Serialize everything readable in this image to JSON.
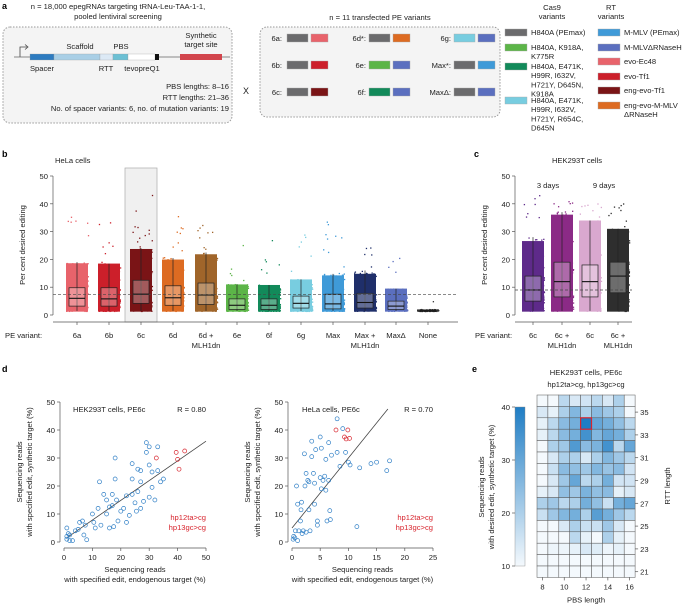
{
  "panel_a": {
    "label": "a",
    "library_title_1": "n = 18,000 epegRNAs targeting tRNA-Leu-TAA-1-1,",
    "library_title_2": "pooled lentiviral screening",
    "construct": {
      "scaffold": "Scaffold",
      "pbs": "PBS",
      "synthetic_1": "Synthetic",
      "synthetic_2": "target site",
      "spacer": "Spacer",
      "rtt": "RTT",
      "tevopreq1": "tevopreQ1"
    },
    "construct_colors": {
      "spacer": "#2d7bc0",
      "scaffold": "#a9cfe6",
      "rtt": "#dce9f5",
      "pbs": "#6cc0d4",
      "tevopreq1": "#ffffff",
      "synthetic": "#d2454d"
    },
    "pbs_lengths": "PBS lengths: 8–16",
    "rtt_lengths": "RTT lengths: 21–36",
    "variants_note": "No. of spacer variants: 6, no. of mutation variants: 19",
    "times": "X",
    "pe_title": "n = 11 transfected PE variants",
    "pe_variants": [
      {
        "label": "6a:",
        "cas9": "#6b6b6d",
        "rt": "#e8636b"
      },
      {
        "label": "6b:",
        "cas9": "#6b6b6d",
        "rt": "#cc1f2a"
      },
      {
        "label": "6c:",
        "cas9": "#6b6b6d",
        "rt": "#7a1416"
      },
      {
        "label": "6d*:",
        "cas9": "#6b6b6d",
        "rt": "#dd6b22"
      },
      {
        "label": "6e:",
        "cas9": "#5cb548",
        "rt": "#5b6fbf"
      },
      {
        "label": "6f:",
        "cas9": "#128a5a",
        "rt": "#5b6fbf"
      },
      {
        "label": "6g:",
        "cas9": "#78cde0",
        "rt": "#5b6fbf"
      },
      {
        "label": "Max*:",
        "cas9": "#6b6b6d",
        "rt": "#3f9ad8"
      },
      {
        "label": "MaxΔ:",
        "cas9": "#6b6b6d",
        "rt": "#5b6fbf"
      }
    ],
    "cas9_header": [
      "Cas9",
      "variants"
    ],
    "cas9_legend": [
      {
        "color": "#6b6b6d",
        "lines": [
          "H840A (PEmax)"
        ]
      },
      {
        "color": "#5cb548",
        "lines": [
          "H840A, K918A,",
          "K775R"
        ]
      },
      {
        "color": "#128a5a",
        "lines": [
          "H840A, E471K,",
          "H99R, I632V,",
          "H721Y, D645N,",
          "K918A"
        ]
      },
      {
        "color": "#78cde0",
        "lines": [
          "H840A, E471K,",
          "H99R, I632V,",
          "H721Y, R654C,",
          "D645N"
        ]
      }
    ],
    "rt_header": [
      "RT",
      "variants"
    ],
    "rt_legend": [
      {
        "color": "#3f9ad8",
        "lines": [
          "M-MLV (PEmax)"
        ]
      },
      {
        "color": "#5b6fbf",
        "lines": [
          "M-MLVΔRNaseH"
        ]
      },
      {
        "color": "#e8636b",
        "lines": [
          "evo-Ec48"
        ]
      },
      {
        "color": "#cc1f2a",
        "lines": [
          "evo-Tf1"
        ]
      },
      {
        "color": "#7a1416",
        "lines": [
          "eng-evo-Tf1"
        ]
      },
      {
        "color": "#dd6b22",
        "lines": [
          "eng-evo-M-MLV",
          "ΔRNaseH"
        ]
      }
    ]
  },
  "chart_data": [
    {
      "panel": "b",
      "type": "box+strip",
      "title": "HeLa cells",
      "ylabel": "Per cent desired editing",
      "xlabel": "PE variant:",
      "ylim": [
        0,
        50
      ],
      "yticks": [
        0,
        10,
        20,
        30,
        40,
        50
      ],
      "reference_line": 7.3,
      "highlighted": "6c",
      "categories": [
        {
          "label": [
            "6a"
          ],
          "color": "#e8636b",
          "median": 6,
          "q1": 3.2,
          "q3": 9.8,
          "whisker_low": 1.5,
          "whisker_high": 19,
          "max": 37.5
        },
        {
          "label": [
            "6b"
          ],
          "color": "#cc1f2a",
          "median": 5.8,
          "q1": 3.2,
          "q3": 9.8,
          "whisker_low": 1.5,
          "whisker_high": 18.5,
          "max": 35.5
        },
        {
          "label": [
            "6c"
          ],
          "color": "#7a1416",
          "median": 7.5,
          "q1": 4.2,
          "q3": 12.5,
          "whisker_low": 1.5,
          "whisker_high": 24,
          "max": 43
        },
        {
          "label": [
            "6d"
          ],
          "color": "#dd6b22",
          "median": 6.2,
          "q1": 3.5,
          "q3": 10.5,
          "whisker_low": 1.5,
          "whisker_high": 20.5,
          "max": 38
        },
        {
          "label": [
            "6d +",
            "MLH1dn"
          ],
          "color": "#a0652a",
          "median": 7.2,
          "q1": 3.8,
          "q3": 11.5,
          "whisker_low": 1.5,
          "whisker_high": 22.5,
          "max": 32.5
        },
        {
          "label": [
            "6e"
          ],
          "color": "#5cb548",
          "median": 3.5,
          "q1": 2,
          "q3": 5.8,
          "whisker_low": 1.5,
          "whisker_high": 11,
          "max": 29
        },
        {
          "label": [
            "6f"
          ],
          "color": "#128a5a",
          "median": 3.5,
          "q1": 2,
          "q3": 5.8,
          "whisker_low": 1.5,
          "whisker_high": 10.8,
          "max": 27.5
        },
        {
          "label": [
            "6g"
          ],
          "color": "#78cde0",
          "median": 4.2,
          "q1": 2.5,
          "q3": 6.8,
          "whisker_low": 1.5,
          "whisker_high": 12.8,
          "max": 29
        },
        {
          "label": [
            "Max"
          ],
          "color": "#3f9ad8",
          "median": 4,
          "q1": 2.2,
          "q3": 7.5,
          "whisker_low": 1.5,
          "whisker_high": 14.8,
          "max": 37.5
        },
        {
          "label": [
            "Max +",
            "MLH1dn"
          ],
          "color": "#1f2f6a",
          "median": 4.5,
          "q1": 2.5,
          "q3": 7.8,
          "whisker_low": 1.5,
          "whisker_high": 16,
          "max": 25.5
        },
        {
          "label": [
            "MaxΔ"
          ],
          "color": "#5b6fbf",
          "median": 3.2,
          "q1": 2,
          "q3": 5,
          "whisker_low": 1.5,
          "whisker_high": 9.5,
          "max": 24
        },
        {
          "label": [
            "None"
          ],
          "color": "#333333",
          "median": 1.5,
          "q1": 1.3,
          "q3": 1.8,
          "whisker_low": 1.2,
          "whisker_high": 2,
          "max": 6.5
        }
      ]
    },
    {
      "panel": "c",
      "type": "box+strip",
      "title": "HEK293T cells",
      "ylabel": "Per cent desired editing",
      "xlabel": "PE variant:",
      "ylim": [
        0,
        50
      ],
      "yticks": [
        0,
        10,
        20,
        30,
        40,
        50
      ],
      "reference_line": 9,
      "groups": [
        "3 days",
        "9 days"
      ],
      "categories": [
        {
          "label": [
            "6c"
          ],
          "color": "#5e2a8a",
          "median": 9,
          "q1": 5,
          "q3": 14,
          "whisker_low": 1.5,
          "whisker_high": 28,
          "max": 43
        },
        {
          "label": [
            "6c +",
            "MLH1dn"
          ],
          "color": "#8b2a86",
          "median": 12,
          "q1": 6.5,
          "q3": 19,
          "whisker_low": 1.5,
          "whisker_high": 37,
          "max": 41
        },
        {
          "label": [
            "6c"
          ],
          "color": "#d9a8cf",
          "median": 12,
          "q1": 6.5,
          "q3": 18,
          "whisker_low": 1.5,
          "whisker_high": 34,
          "max": 41
        },
        {
          "label": [
            "6c +",
            "MLH1dn"
          ],
          "color": "#2e2e2e",
          "median": 14,
          "q1": 8,
          "q3": 19,
          "whisker_low": 1.5,
          "whisker_high": 31,
          "max": 41
        }
      ]
    },
    {
      "panel": "d",
      "type": "scatter",
      "title": "HEK293T cells, PE6c",
      "r_label": "R = 0.80",
      "xlabel": [
        "Sequencing reads",
        "with specified edit, endogenous target (%)"
      ],
      "ylabel": [
        "Sequencing reads",
        "with specified edit, synthetic target (%)"
      ],
      "xlim": [
        0,
        50
      ],
      "ylim": [
        0,
        50
      ],
      "xticks": [
        0,
        10,
        20,
        30,
        40,
        50
      ],
      "yticks": [
        0,
        10,
        20,
        30,
        40,
        50
      ],
      "highlight_labels": [
        "hp12ta>cg",
        "hp13gc>cg"
      ],
      "colors": {
        "points": "#2f7fc6",
        "highlight": "#d7242d"
      },
      "fit": [
        [
          1,
          1.5
        ],
        [
          50,
          36
        ]
      ],
      "points": [
        [
          1,
          1
        ],
        [
          1,
          2
        ],
        [
          1.5,
          3
        ],
        [
          1,
          5
        ],
        [
          2,
          0.5
        ],
        [
          2,
          2.5
        ],
        [
          3,
          0.5
        ],
        [
          4,
          4
        ],
        [
          5,
          4.5
        ],
        [
          5.5,
          7
        ],
        [
          6.5,
          7.5
        ],
        [
          7,
          2.5
        ],
        [
          8,
          0.8
        ],
        [
          7.5,
          6
        ],
        [
          10,
          10
        ],
        [
          10.5,
          7
        ],
        [
          11,
          5
        ],
        [
          12,
          12
        ],
        [
          12.5,
          21.5
        ],
        [
          13,
          6
        ],
        [
          14,
          17
        ],
        [
          15,
          15
        ],
        [
          15,
          10
        ],
        [
          16,
          12.5
        ],
        [
          16,
          5
        ],
        [
          17,
          17
        ],
        [
          17,
          13
        ],
        [
          17.5,
          5.5
        ],
        [
          18,
          30
        ],
        [
          18,
          22.5
        ],
        [
          18.5,
          15
        ],
        [
          19,
          7.5
        ],
        [
          20,
          11
        ],
        [
          21,
          12
        ],
        [
          22,
          16.5
        ],
        [
          22,
          7
        ],
        [
          23,
          9.5
        ],
        [
          24,
          28
        ],
        [
          24,
          22.5
        ],
        [
          24,
          17
        ],
        [
          25,
          14
        ],
        [
          25.5,
          11
        ],
        [
          26,
          26
        ],
        [
          26,
          18
        ],
        [
          27,
          25.5
        ],
        [
          27,
          21.5
        ],
        [
          27,
          12
        ],
        [
          28,
          14.5
        ],
        [
          29,
          35.5
        ],
        [
          29,
          32
        ],
        [
          30,
          34
        ],
        [
          30,
          27.5
        ],
        [
          30,
          16
        ],
        [
          31,
          25
        ],
        [
          31,
          19.5
        ],
        [
          32,
          15
        ],
        [
          33,
          34
        ],
        [
          33,
          25.5
        ],
        [
          34,
          21.5
        ],
        [
          35,
          22.5
        ]
      ],
      "highlight_points": [
        [
          32.5,
          30
        ],
        [
          39.5,
          32
        ],
        [
          40,
          29.5
        ],
        [
          42.5,
          32.5
        ],
        [
          40.5,
          26
        ]
      ]
    },
    {
      "panel": "d",
      "type": "scatter",
      "title": "HeLa cells, PE6c",
      "r_label": "R = 0.70",
      "xlabel": [
        "Sequencing reads",
        "with specified edit, endogenous target (%)"
      ],
      "ylabel": [
        "Sequencing reads",
        "with specified edit, synthetic target (%)"
      ],
      "xlim": [
        0,
        25
      ],
      "ylim": [
        0,
        50
      ],
      "xticks": [
        0,
        5,
        10,
        15,
        20,
        25
      ],
      "yticks": [
        0,
        10,
        20,
        30,
        40,
        50
      ],
      "highlight_labels": [
        "hp12ta>cg",
        "hp13gc>cg"
      ],
      "colors": {
        "points": "#2f7fc6",
        "highlight": "#d7242d"
      },
      "fit": [
        [
          0,
          5
        ],
        [
          17,
          47.5
        ]
      ],
      "points": [
        [
          0.2,
          1
        ],
        [
          0.3,
          2
        ],
        [
          0.5,
          1.5
        ],
        [
          0.6,
          4
        ],
        [
          0.8,
          20
        ],
        [
          1,
          13.5
        ],
        [
          1,
          0.5
        ],
        [
          1.2,
          4
        ],
        [
          1.5,
          7.5
        ],
        [
          1.6,
          11.5
        ],
        [
          1.7,
          14.2
        ],
        [
          1.8,
          3
        ],
        [
          2,
          4
        ],
        [
          2.2,
          31.5
        ],
        [
          2.3,
          20
        ],
        [
          2.5,
          24.5
        ],
        [
          2.5,
          3.5
        ],
        [
          2.8,
          22
        ],
        [
          3,
          21.5
        ],
        [
          3,
          11.5
        ],
        [
          3.2,
          4
        ],
        [
          3.5,
          36
        ],
        [
          3.5,
          30.5
        ],
        [
          3.8,
          24.5
        ],
        [
          4,
          21
        ],
        [
          4,
          13.5
        ],
        [
          4.2,
          33
        ],
        [
          4.5,
          7.5
        ],
        [
          4.5,
          6
        ],
        [
          5,
          37.5
        ],
        [
          5,
          23
        ],
        [
          5.2,
          33.5
        ],
        [
          5.2,
          19
        ],
        [
          5.5,
          22
        ],
        [
          5.8,
          23.5
        ],
        [
          6,
          29.5
        ],
        [
          6,
          18.5
        ],
        [
          6.2,
          7.5
        ],
        [
          6.5,
          35.5
        ],
        [
          6.5,
          22
        ],
        [
          6.7,
          11.2
        ],
        [
          6.8,
          8
        ],
        [
          7,
          31
        ],
        [
          8,
          32
        ],
        [
          8.5,
          27
        ],
        [
          8,
          44
        ],
        [
          9,
          40.5
        ],
        [
          9.5,
          32
        ],
        [
          10,
          28.5
        ],
        [
          10.3,
          27.5
        ],
        [
          11.5,
          5.5
        ],
        [
          12,
          26.5
        ],
        [
          14,
          28
        ],
        [
          15,
          28.5
        ],
        [
          16.8,
          25.5
        ],
        [
          17.3,
          29
        ]
      ],
      "highlight_points": [
        [
          7.8,
          40
        ],
        [
          9.3,
          37.5
        ],
        [
          9.6,
          36.8
        ],
        [
          10.2,
          37
        ],
        [
          9.9,
          40
        ]
      ]
    },
    {
      "panel": "e",
      "type": "heatmap",
      "title": [
        "HEK293T cells, PE6c",
        "hp12ta>cg, hp13gc>cg"
      ],
      "xlabel": "PBS length",
      "ylabel": "RTT length",
      "colorbar_label": [
        "Sequencing reads",
        "with desired edit, synthetic target (%)"
      ],
      "colorbar_range": [
        10,
        40
      ],
      "colorbar_ticks": [
        10,
        20,
        30,
        40
      ],
      "colors": {
        "low": "#f4f9fd",
        "high": "#1f7dc4",
        "highlight": "#d7242d"
      },
      "x": [
        8,
        9,
        10,
        11,
        12,
        13,
        14,
        15,
        16
      ],
      "xticks": [
        8,
        10,
        12,
        14,
        16
      ],
      "y": [
        36,
        35,
        34,
        33,
        32,
        31,
        30,
        29,
        28,
        27,
        26,
        25,
        24,
        23,
        22,
        21
      ],
      "yticks": [
        35,
        33,
        31,
        29,
        27,
        25,
        23,
        21
      ],
      "highlight_cell": {
        "pbs": 12,
        "rtt": 34
      },
      "values": [
        [
          10,
          10,
          18,
          14,
          15,
          18,
          14,
          20,
          10
        ],
        [
          14,
          12,
          20,
          26,
          20,
          25,
          22,
          20,
          10
        ],
        [
          12,
          18,
          25,
          28,
          40,
          30,
          28,
          24,
          18
        ],
        [
          12,
          18,
          25,
          28,
          35,
          26,
          30,
          28,
          20
        ],
        [
          10,
          20,
          22,
          33,
          25,
          27,
          35,
          18,
          30
        ],
        [
          10,
          14,
          20,
          20,
          14,
          20,
          26,
          22,
          18
        ],
        [
          10,
          16,
          25,
          24,
          22,
          26,
          23,
          25,
          15
        ],
        [
          10,
          14,
          22,
          30,
          18,
          20,
          28,
          15,
          15
        ],
        [
          12,
          14,
          24,
          22,
          27,
          24,
          25,
          12,
          14
        ],
        [
          20,
          22,
          18,
          20,
          28,
          24,
          16,
          28,
          30
        ],
        [
          16,
          22,
          26,
          28,
          20,
          32,
          28,
          22,
          18
        ],
        [
          10,
          10,
          14,
          20,
          16,
          16,
          22,
          14,
          10
        ],
        [
          10,
          10,
          10,
          18,
          12,
          10,
          20,
          12,
          10
        ],
        [
          10,
          11,
          11,
          12,
          14,
          13,
          11,
          12,
          10
        ],
        [
          10,
          10,
          10,
          10,
          10,
          10,
          10,
          10,
          10
        ],
        [
          10,
          10,
          10,
          10,
          10,
          10,
          10,
          10,
          10
        ]
      ]
    }
  ],
  "panel_labels": {
    "b": "b",
    "c": "c",
    "d": "d",
    "e": "e"
  }
}
